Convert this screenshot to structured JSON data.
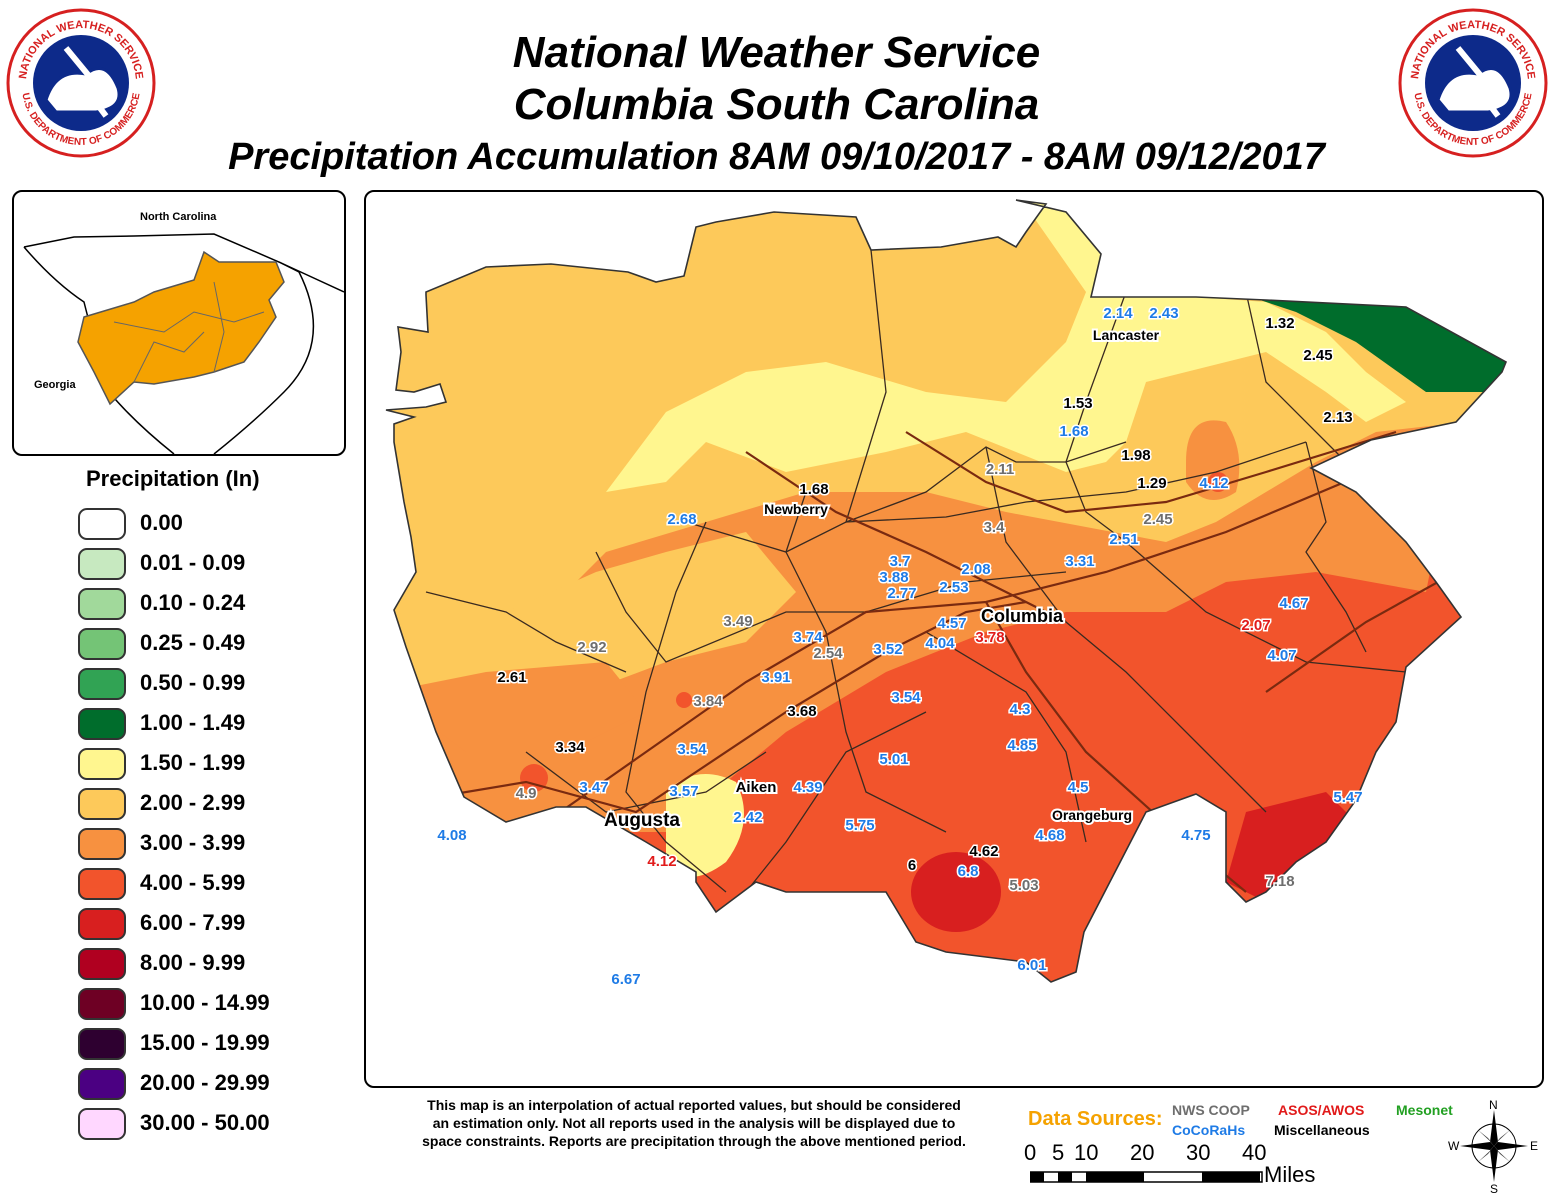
{
  "header": {
    "line1": "National Weather Service",
    "line2": "Columbia South Carolina",
    "line3": "Precipitation Accumulation 8AM 09/10/2017 - 8AM 09/12/2017"
  },
  "logo": {
    "text_top": "NATIONAL WEATHER SERVICE",
    "text_bottom": "U.S. DEPARTMENT OF COMMERCE"
  },
  "inset": {
    "label_north": "North Carolina",
    "label_west": "Georgia"
  },
  "legend": {
    "title": "Precipitation (In)",
    "items": [
      {
        "label": "0.00",
        "color": "#ffffff"
      },
      {
        "label": "0.01 - 0.09",
        "color": "#c7e9c0"
      },
      {
        "label": "0.10 - 0.24",
        "color": "#a1d99b"
      },
      {
        "label": "0.25 - 0.49",
        "color": "#74c476"
      },
      {
        "label": "0.50 - 0.99",
        "color": "#31a354"
      },
      {
        "label": "1.00 - 1.49",
        "color": "#006d2c"
      },
      {
        "label": "1.50 - 1.99",
        "color": "#fff68f"
      },
      {
        "label": "2.00 - 2.99",
        "color": "#fdc95a"
      },
      {
        "label": "3.00 - 3.99",
        "color": "#f79140"
      },
      {
        "label": "4.00 - 5.99",
        "color": "#f2542c"
      },
      {
        "label": "6.00 - 7.99",
        "color": "#d81f1f"
      },
      {
        "label": "8.00 - 9.99",
        "color": "#b00020"
      },
      {
        "label": "10.00 - 14.99",
        "color": "#6e0024"
      },
      {
        "label": "15.00 - 19.99",
        "color": "#2e0030"
      },
      {
        "label": "20.00 - 29.99",
        "color": "#4b0082"
      },
      {
        "label": "30.00 - 50.00",
        "color": "#ffd7ff"
      }
    ]
  },
  "cities": [
    {
      "name": "Lancaster"
    },
    {
      "name": "Newberry"
    },
    {
      "name": "Columbia"
    },
    {
      "name": "Aiken"
    },
    {
      "name": "Augusta"
    },
    {
      "name": "Orangeburg"
    }
  ],
  "observations": [
    {
      "v": "2.14",
      "src": "cocorahs"
    },
    {
      "v": "2.43",
      "src": "cocorahs"
    },
    {
      "v": "1.32",
      "src": "misc"
    },
    {
      "v": "2.45",
      "src": "misc"
    },
    {
      "v": "1.53",
      "src": "misc"
    },
    {
      "v": "1.68",
      "src": "cocorahs"
    },
    {
      "v": "2.13",
      "src": "misc"
    },
    {
      "v": "1.98",
      "src": "misc"
    },
    {
      "v": "2.11",
      "src": "coop"
    },
    {
      "v": "1.29",
      "src": "misc"
    },
    {
      "v": "4.12",
      "src": "cocorahs"
    },
    {
      "v": "1.68",
      "src": "misc"
    },
    {
      "v": "2.68",
      "src": "cocorahs"
    },
    {
      "v": "3.4",
      "src": "coop"
    },
    {
      "v": "2.45",
      "src": "coop"
    },
    {
      "v": "2.51",
      "src": "cocorahs"
    },
    {
      "v": "3.31",
      "src": "cocorahs"
    },
    {
      "v": "3.7",
      "src": "cocorahs"
    },
    {
      "v": "3.88",
      "src": "cocorahs"
    },
    {
      "v": "2.08",
      "src": "cocorahs"
    },
    {
      "v": "2.77",
      "src": "cocorahs"
    },
    {
      "v": "2.53",
      "src": "cocorahs"
    },
    {
      "v": "4.67",
      "src": "cocorahs"
    },
    {
      "v": "3.49",
      "src": "coop"
    },
    {
      "v": "4.57",
      "src": "cocorahs"
    },
    {
      "v": "3.78",
      "src": "asos"
    },
    {
      "v": "2.07",
      "src": "asos"
    },
    {
      "v": "2.92",
      "src": "coop"
    },
    {
      "v": "3.74",
      "src": "cocorahs"
    },
    {
      "v": "2.54",
      "src": "coop"
    },
    {
      "v": "3.52",
      "src": "cocorahs"
    },
    {
      "v": "4.04",
      "src": "cocorahs"
    },
    {
      "v": "4.07",
      "src": "cocorahs"
    },
    {
      "v": "2.61",
      "src": "misc"
    },
    {
      "v": "3.91",
      "src": "cocorahs"
    },
    {
      "v": "3.84",
      "src": "coop"
    },
    {
      "v": "3.68",
      "src": "misc"
    },
    {
      "v": "3.54",
      "src": "cocorahs"
    },
    {
      "v": "4.3",
      "src": "cocorahs"
    },
    {
      "v": "3.34",
      "src": "misc"
    },
    {
      "v": "3.54",
      "src": "cocorahs"
    },
    {
      "v": "4.85",
      "src": "cocorahs"
    },
    {
      "v": "5.01",
      "src": "cocorahs"
    },
    {
      "v": "4.9",
      "src": "coop"
    },
    {
      "v": "3.47",
      "src": "cocorahs"
    },
    {
      "v": "3.57",
      "src": "cocorahs"
    },
    {
      "v": "4.39",
      "src": "cocorahs"
    },
    {
      "v": "4.5",
      "src": "cocorahs"
    },
    {
      "v": "5.47",
      "src": "cocorahs"
    },
    {
      "v": "4.08",
      "src": "cocorahs"
    },
    {
      "v": "2.42",
      "src": "cocorahs"
    },
    {
      "v": "5.75",
      "src": "cocorahs"
    },
    {
      "v": "4.68",
      "src": "cocorahs"
    },
    {
      "v": "4.75",
      "src": "cocorahs"
    },
    {
      "v": "4.12",
      "src": "asos"
    },
    {
      "v": "6",
      "src": "misc"
    },
    {
      "v": "6.8",
      "src": "cocorahs"
    },
    {
      "v": "4.62",
      "src": "misc"
    },
    {
      "v": "5.03",
      "src": "coop"
    },
    {
      "v": "7.18",
      "src": "coop"
    },
    {
      "v": "6.67",
      "src": "cocorahs"
    },
    {
      "v": "6.01",
      "src": "cocorahs"
    }
  ],
  "source_colors": {
    "coop": "#6e6e6e",
    "cocorahs": "#1e7be6",
    "asos": "#e11a1a",
    "misc": "#000000",
    "mesonet": "#22a022"
  },
  "disclaimer": {
    "line1": "This map is an interpolation of actual reported values, but should be considered",
    "line2": "an estimation only. Not all reports used in the analysis will be displayed due to",
    "line3": "space constraints. Reports are precipitation through the above mentioned period."
  },
  "sources": {
    "title": "Data Sources:",
    "coop": "NWS COOP",
    "asos": "ASOS/AWOS",
    "mesonet": "Mesonet",
    "cocorahs": "CoCoRaHs",
    "misc": "Miscellaneous"
  },
  "scale": {
    "ticks": [
      "0",
      "5",
      "10",
      "20",
      "30",
      "40"
    ],
    "unit": "Miles"
  },
  "compass": {
    "n": "N",
    "s": "S",
    "e": "E",
    "w": "W"
  }
}
